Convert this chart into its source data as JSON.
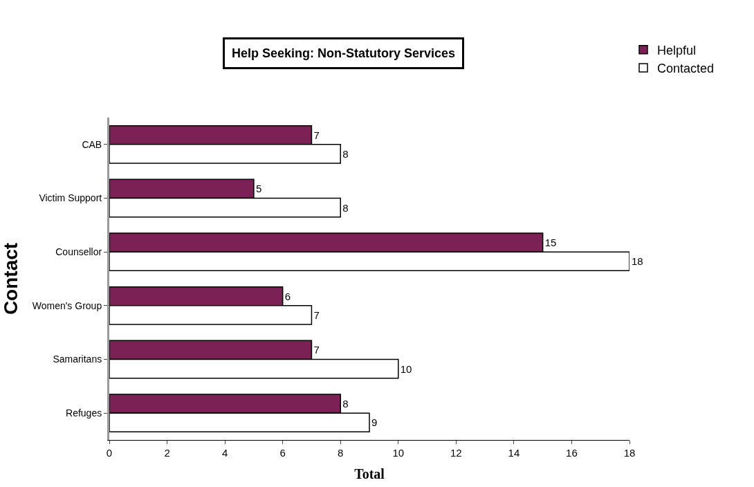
{
  "chart_data": {
    "type": "bar",
    "orientation": "horizontal",
    "title": "Help Seeking: Non-Statutory Services",
    "xlabel": "Total",
    "ylabel": "Contact",
    "categories": [
      "CAB",
      "Victim Support",
      "Counsellor",
      "Women's Group",
      "Samaritans",
      "Refuges"
    ],
    "series": [
      {
        "name": "Helpful",
        "color": "#7b2156",
        "values": [
          7,
          5,
          15,
          6,
          7,
          8
        ]
      },
      {
        "name": "Contacted",
        "color": "#ffffff",
        "values": [
          8,
          8,
          18,
          7,
          10,
          9
        ]
      }
    ],
    "xlim": [
      0,
      18
    ],
    "xticks": [
      0,
      2,
      4,
      6,
      8,
      10,
      12,
      14,
      16,
      18
    ],
    "data_labels": true,
    "legend": "top right"
  }
}
